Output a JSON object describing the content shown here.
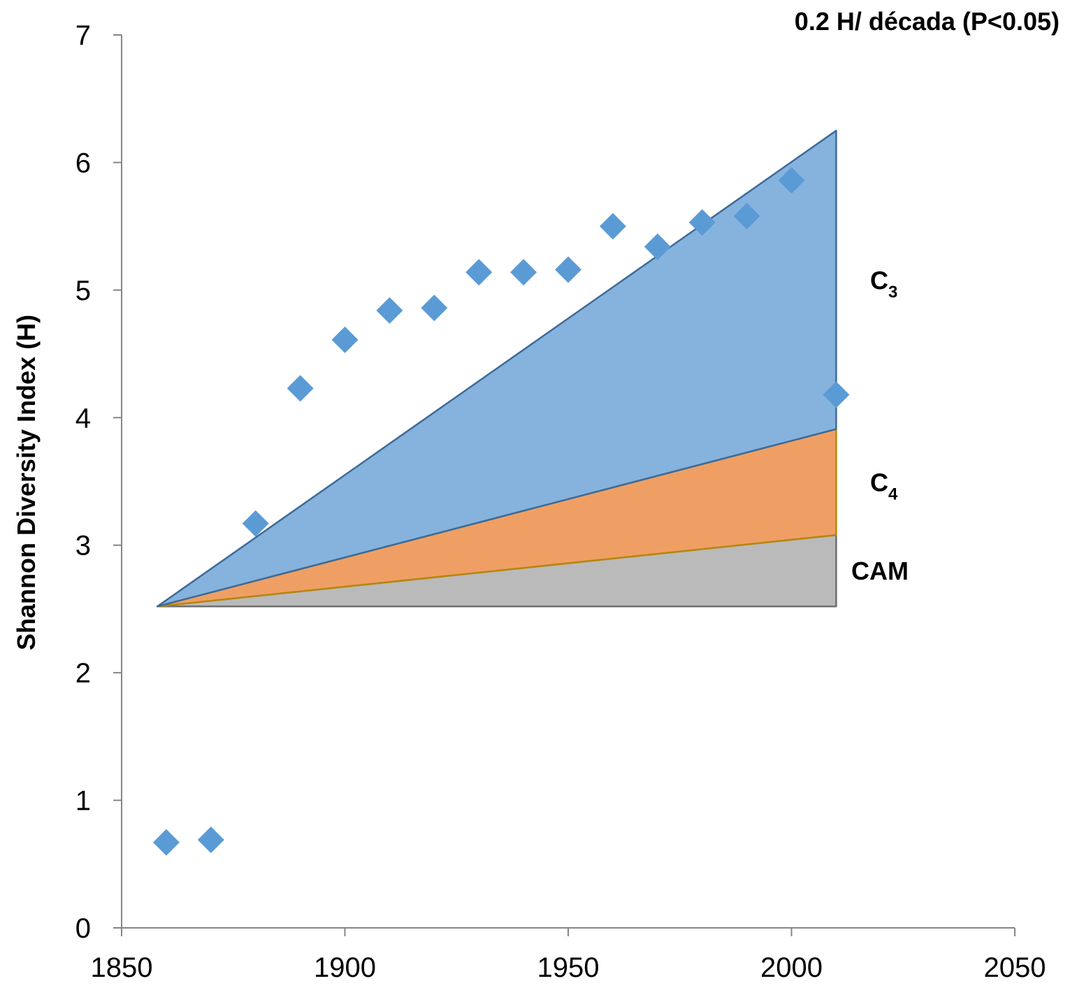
{
  "chart_data": {
    "type": "scatter",
    "title": "",
    "annotation": "0.2 H/ década (P<0.05)",
    "xlabel": "",
    "ylabel": "Shannon Diversity Index (H)",
    "xlim": [
      1850,
      2050
    ],
    "ylim": [
      0,
      7
    ],
    "xticks": [
      "1850",
      "1900",
      "1950",
      "2000",
      "2050"
    ],
    "yticks": [
      "0",
      "1",
      "2",
      "3",
      "4",
      "5",
      "6",
      "7"
    ],
    "grid": false,
    "series": [
      {
        "marker": "diamond",
        "color": "#5B9BD5",
        "x": [
          1860,
          1870,
          1880,
          1890,
          1900,
          1910,
          1920,
          1930,
          1940,
          1950,
          1960,
          1970,
          1980,
          1990,
          2000,
          2010
        ],
        "y": [
          0.67,
          0.69,
          3.17,
          4.23,
          4.61,
          4.84,
          4.86,
          5.14,
          5.14,
          5.16,
          5.5,
          5.34,
          5.53,
          5.58,
          5.86,
          4.18
        ]
      }
    ],
    "areas": [
      {
        "label": "CAM",
        "sub": "",
        "color": "#BABABA",
        "stroke": "#6E6E6E",
        "x": [
          1858,
          2010
        ],
        "lower": [
          2.52,
          2.52
        ],
        "upper": [
          2.52,
          3.08
        ]
      },
      {
        "label": "C",
        "sub": "4",
        "color": "#EF9F64",
        "stroke": "#B8860B",
        "x": [
          1858,
          2010
        ],
        "lower": [
          2.52,
          3.08
        ],
        "upper": [
          2.52,
          3.91
        ]
      },
      {
        "label": "C",
        "sub": "3",
        "color": "#85B3DE",
        "stroke": "#3D6A98",
        "x": [
          1858,
          2010
        ],
        "lower": [
          2.52,
          3.91
        ],
        "upper": [
          2.52,
          6.25
        ]
      }
    ]
  }
}
